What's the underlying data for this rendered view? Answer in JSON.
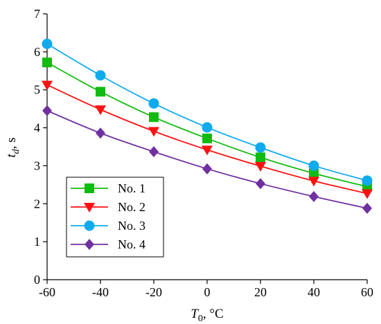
{
  "chart_data": {
    "type": "line",
    "xlabel": {
      "symbol": "T",
      "subscript": "0",
      "unit": ", °C"
    },
    "ylabel": {
      "symbol": "t",
      "subscript": "d",
      "unit": ", s"
    },
    "xlim": [
      -60,
      60
    ],
    "ylim": [
      0,
      7
    ],
    "x": [
      -60,
      -40,
      -20,
      0,
      20,
      40,
      60
    ],
    "x_ticks": [
      "-60",
      "-40",
      "-20",
      "0",
      "20",
      "40",
      "60"
    ],
    "y_ticks": [
      "0",
      "1",
      "2",
      "3",
      "4",
      "5",
      "6",
      "7"
    ],
    "grid": false,
    "legend_position": "bottom-left",
    "series": [
      {
        "name": "No. 1",
        "color": "#11bb11",
        "marker": "square",
        "values": [
          5.72,
          4.95,
          4.28,
          3.72,
          3.22,
          2.8,
          2.45
        ]
      },
      {
        "name": "No. 2",
        "color": "#ff1111",
        "marker": "triangle-down",
        "values": [
          5.13,
          4.48,
          3.91,
          3.42,
          2.99,
          2.6,
          2.27
        ]
      },
      {
        "name": "No. 3",
        "color": "#11aaee",
        "marker": "circle",
        "values": [
          6.21,
          5.38,
          4.64,
          4.01,
          3.48,
          3.0,
          2.61
        ]
      },
      {
        "name": "No. 4",
        "color": "#7030a0",
        "marker": "diamond",
        "values": [
          4.45,
          3.86,
          3.37,
          2.92,
          2.53,
          2.19,
          1.88
        ]
      }
    ]
  }
}
